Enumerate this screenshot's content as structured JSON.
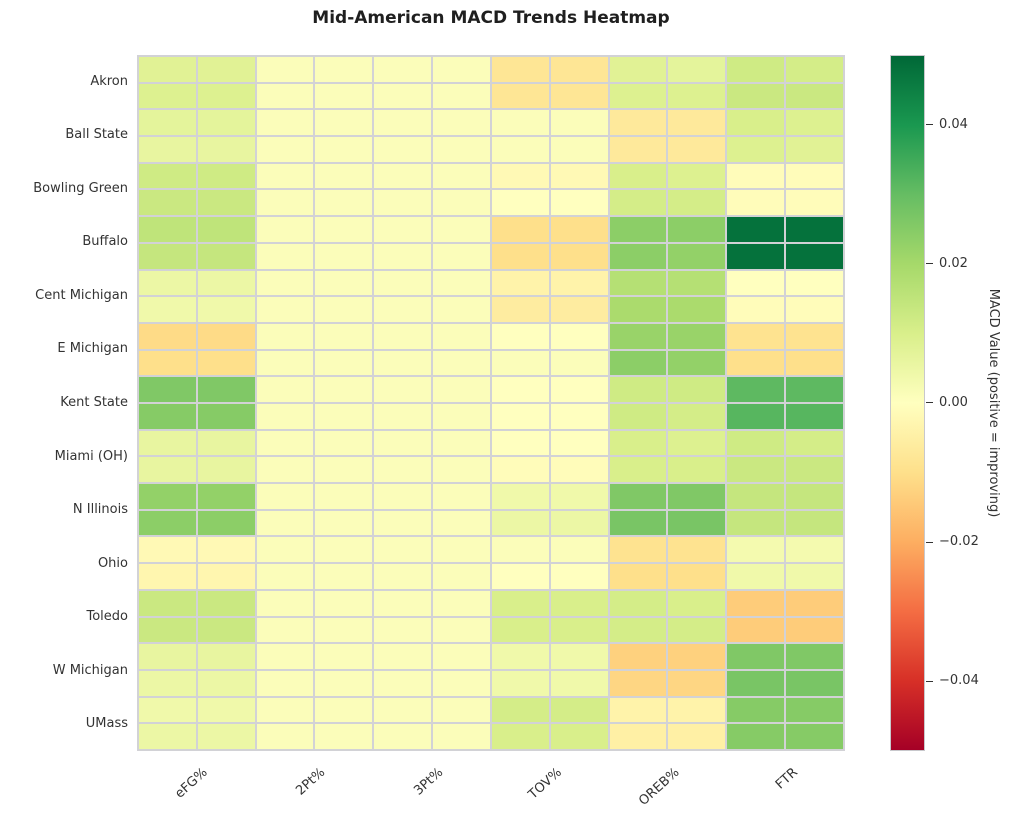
{
  "title": "Mid-American MACD Trends Heatmap",
  "colors": {
    "background": "#ffffff",
    "grid_line": "#d2d2d6",
    "text": "#333333",
    "title_text": "#1f1f1f",
    "colormap_negative_end": "#a50026",
    "colormap_zero": "#ffffbf",
    "colormap_positive_end": "#006837"
  },
  "chart_data": {
    "type": "heatmap",
    "title": "Mid-American MACD Trends Heatmap",
    "rows": [
      "Akron",
      "Ball State",
      "Bowling Green",
      "Buffalo",
      "Cent Michigan",
      "E Michigan",
      "Kent State",
      "Miami (OH)",
      "N Illinois",
      "Ohio",
      "Toledo",
      "W Michigan",
      "UMass"
    ],
    "cols": [
      "eFG%",
      "2Pt%",
      "3Pt%",
      "TOV%",
      "OREB%",
      "FTR"
    ],
    "subcells": {
      "rows_per_team": 2,
      "cols_per_stat": 2,
      "grid_rows": 26,
      "grid_cols": 12
    },
    "value_range": [
      -0.05,
      0.05
    ],
    "colormap": "RdYlGn",
    "grid": true,
    "colorbar": {
      "label": "MACD Value (positive = improving)",
      "tick_labels": [
        "0.04",
        "0.02",
        "0.00",
        "−0.02",
        "−0.04"
      ],
      "tick_values": [
        0.04,
        0.02,
        0,
        -0.02,
        -0.04
      ],
      "position": "right"
    },
    "values": [
      [
        0.008,
        0.008,
        0.001,
        0.001,
        0.001,
        0.001,
        -0.008,
        -0.008,
        0.008,
        0.007,
        0.012,
        0.011
      ],
      [
        0.009,
        0.009,
        0.001,
        0.001,
        0.001,
        0.001,
        -0.008,
        -0.008,
        0.009,
        0.009,
        0.013,
        0.013
      ],
      [
        0.007,
        0.007,
        0.001,
        0.001,
        0.001,
        0.001,
        0.001,
        0.001,
        -0.007,
        -0.007,
        0.01,
        0.009
      ],
      [
        0.006,
        0.006,
        0.001,
        0.001,
        0.001,
        0.001,
        0.001,
        0.001,
        -0.007,
        -0.007,
        0.009,
        0.008
      ],
      [
        0.012,
        0.012,
        0.001,
        0.001,
        0.001,
        0.001,
        -0.002,
        -0.002,
        0.01,
        0.009,
        -0.001,
        -0.001
      ],
      [
        0.013,
        0.013,
        0.001,
        0.001,
        0.001,
        0.001,
        0,
        0,
        0.011,
        0.011,
        -0.001,
        -0.001
      ],
      [
        0.015,
        0.015,
        0.001,
        0.001,
        0.001,
        0.001,
        -0.01,
        -0.01,
        0.024,
        0.024,
        0.048,
        0.048
      ],
      [
        0.014,
        0.014,
        0.001,
        0.001,
        0.001,
        0.001,
        -0.01,
        -0.01,
        0.024,
        0.023,
        0.048,
        0.048
      ],
      [
        0.005,
        0.005,
        0.001,
        0.001,
        0.001,
        0.001,
        -0.004,
        -0.004,
        0.017,
        0.017,
        0,
        0
      ],
      [
        0.004,
        0.004,
        0.001,
        0.001,
        0.001,
        0.001,
        -0.006,
        -0.006,
        0.019,
        0.019,
        -0.001,
        -0.001
      ],
      [
        -0.011,
        -0.011,
        0.001,
        0.001,
        0.001,
        0.001,
        0,
        0,
        0.022,
        0.022,
        -0.009,
        -0.009
      ],
      [
        -0.01,
        -0.01,
        0.001,
        0.001,
        0.001,
        0.001,
        0.001,
        0.001,
        0.024,
        0.023,
        -0.01,
        -0.01
      ],
      [
        0.026,
        0.026,
        0.001,
        0.001,
        0.001,
        0.001,
        0,
        0,
        0.012,
        0.012,
        0.031,
        0.031
      ],
      [
        0.025,
        0.025,
        0.001,
        0.001,
        0.001,
        0.001,
        0,
        0,
        0.012,
        0.011,
        0.032,
        0.032
      ],
      [
        0.006,
        0.006,
        0.001,
        0.001,
        0.001,
        0.001,
        0,
        0,
        0.01,
        0.009,
        0.012,
        0.011
      ],
      [
        0.006,
        0.006,
        0.001,
        0.001,
        0.001,
        0.001,
        -0.001,
        -0.001,
        0.01,
        0.01,
        0.013,
        0.013
      ],
      [
        0.023,
        0.023,
        0.001,
        0.001,
        0.001,
        0.001,
        0.004,
        0.004,
        0.026,
        0.026,
        0.014,
        0.014
      ],
      [
        0.024,
        0.024,
        0.001,
        0.001,
        0.001,
        0.001,
        0.005,
        0.005,
        0.027,
        0.027,
        0.014,
        0.014
      ],
      [
        -0.002,
        -0.002,
        0.001,
        0.001,
        0.001,
        0.001,
        0.001,
        0.001,
        -0.009,
        -0.009,
        0.003,
        0.003
      ],
      [
        -0.003,
        -0.003,
        0.001,
        0.001,
        0.001,
        0.001,
        0,
        0,
        -0.01,
        -0.01,
        0.004,
        0.004
      ],
      [
        0.013,
        0.013,
        0.001,
        0.001,
        0.001,
        0.001,
        0.01,
        0.01,
        0.011,
        0.01,
        -0.014,
        -0.014
      ],
      [
        0.013,
        0.013,
        0.001,
        0.001,
        0.001,
        0.001,
        0.01,
        0.01,
        0.011,
        0.011,
        -0.014,
        -0.014
      ],
      [
        0.006,
        0.006,
        0.001,
        0.001,
        0.001,
        0.001,
        0.004,
        0.004,
        -0.013,
        -0.013,
        0.026,
        0.026
      ],
      [
        0.005,
        0.005,
        0.001,
        0.001,
        0.001,
        0.001,
        0.004,
        0.004,
        -0.012,
        -0.012,
        0.027,
        0.027
      ],
      [
        0.004,
        0.004,
        0.001,
        0.001,
        0.001,
        0.001,
        0.011,
        0.011,
        -0.004,
        -0.004,
        0.025,
        0.025
      ],
      [
        0.005,
        0.005,
        0.001,
        0.001,
        0.001,
        0.001,
        0.01,
        0.01,
        -0.005,
        -0.005,
        0.025,
        0.025
      ]
    ],
    "colormap_stops": [
      [
        0.0,
        "#a50026"
      ],
      [
        0.1,
        "#d73027"
      ],
      [
        0.2,
        "#f46d43"
      ],
      [
        0.3,
        "#fdae61"
      ],
      [
        0.4,
        "#fee08b"
      ],
      [
        0.5,
        "#ffffbf"
      ],
      [
        0.6,
        "#d9ef8b"
      ],
      [
        0.7,
        "#a6d96a"
      ],
      [
        0.8,
        "#66bd63"
      ],
      [
        0.9,
        "#1a9850"
      ],
      [
        1.0,
        "#006837"
      ]
    ]
  }
}
